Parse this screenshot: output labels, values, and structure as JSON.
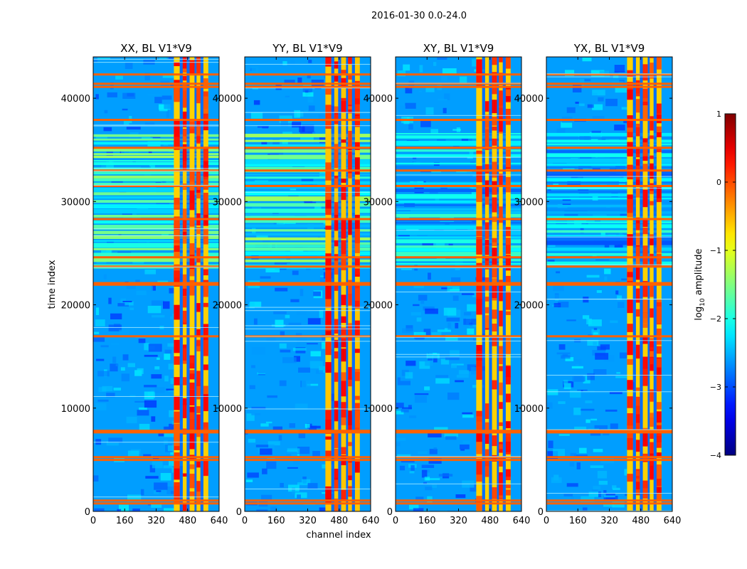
{
  "chart_data": {
    "type": "heatmap",
    "suptitle": "2016-01-30 0.0-24.0",
    "xlabel": "channel index",
    "ylabel": "time index",
    "xlim": [
      0,
      640
    ],
    "ylim": [
      0,
      44000
    ],
    "xticks": [
      0,
      160,
      320,
      480,
      640
    ],
    "yticks": [
      0,
      10000,
      20000,
      30000,
      40000
    ],
    "panels": [
      {
        "title": "XX, BL V1*V9",
        "band_level": -1.9,
        "rfi_level": 0.15
      },
      {
        "title": "YY, BL V1*V9",
        "band_level": -1.9,
        "rfi_level": 0.2
      },
      {
        "title": "XY, BL V1*V9",
        "band_level": -2.4,
        "rfi_level": 0.15
      },
      {
        "title": "YX, BL V1*V9",
        "band_level": -2.4,
        "rfi_level": 0.15
      }
    ],
    "background_level": -2.6,
    "hot_channels": [
      [
        410,
        440
      ],
      [
        455,
        475
      ],
      [
        490,
        515
      ],
      [
        525,
        545
      ],
      [
        560,
        585
      ]
    ],
    "flagged_rows": [
      770,
      1050,
      4980,
      5250,
      7650,
      7800,
      16950,
      21950,
      22100,
      23700,
      24600,
      28300,
      31500,
      33000,
      35200,
      37900,
      41100,
      41400,
      42300
    ],
    "noisy_time_range": [
      23500,
      36500
    ],
    "colorbar": {
      "label_prefix": "log",
      "label_sub": "10",
      "label_suffix": " amplitude",
      "range": [
        -4,
        1
      ],
      "ticks": [
        -4,
        -3,
        -2,
        -1,
        0,
        1
      ],
      "tick_labels": [
        "−4",
        "−3",
        "−2",
        "−1",
        "0",
        "1"
      ],
      "colormap": "jet"
    }
  }
}
